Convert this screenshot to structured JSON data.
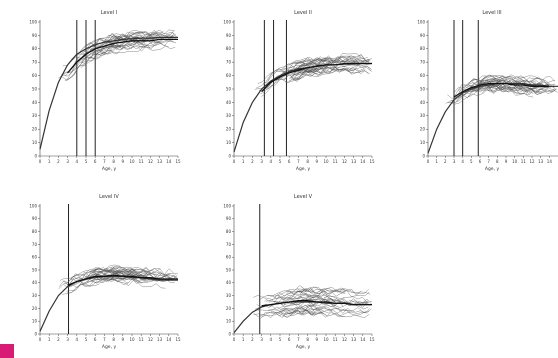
{
  "chart_data": [
    {
      "type": "line",
      "title": "Level I",
      "xlabel": "Age, y",
      "xlim": [
        0,
        15
      ],
      "ylim": [
        0,
        100
      ],
      "x_ticks": [
        "0",
        "1",
        "2",
        "3",
        "4",
        "5",
        "6",
        "7",
        "8",
        "9",
        "10",
        "11",
        "12",
        "13",
        "14",
        "15"
      ],
      "y_ticks": [
        "0",
        "10",
        "20",
        "30",
        "40",
        "50",
        "60",
        "70",
        "80",
        "90",
        "100"
      ],
      "vertical_markers": [
        4,
        5,
        6
      ],
      "series": [
        {
          "values": [
            [
              0,
              5
            ],
            [
              1,
              34
            ],
            [
              2,
              55
            ],
            [
              3,
              68
            ],
            [
              4,
              76
            ],
            [
              5,
              80
            ],
            [
              6,
              83
            ],
            [
              7,
              85
            ],
            [
              8,
              86
            ],
            [
              9,
              87
            ],
            [
              10,
              87.5
            ],
            [
              11,
              88
            ],
            [
              12,
              88
            ],
            [
              13,
              88.5
            ],
            [
              14,
              88.5
            ],
            [
              15,
              88.5
            ]
          ]
        },
        {
          "values": [
            [
              3,
              62
            ],
            [
              4,
              70
            ],
            [
              5,
              76
            ],
            [
              6,
              80
            ],
            [
              7,
              82
            ],
            [
              8,
              84
            ],
            [
              9,
              85
            ],
            [
              10,
              86
            ],
            [
              11,
              86
            ],
            [
              12,
              86
            ],
            [
              13,
              87
            ],
            [
              14,
              87
            ],
            [
              15,
              87
            ]
          ]
        }
      ]
    },
    {
      "type": "line",
      "title": "Level II",
      "xlabel": "Age, y",
      "xlim": [
        0,
        15
      ],
      "ylim": [
        0,
        100
      ],
      "x_ticks": [
        "0",
        "1",
        "2",
        "3",
        "4",
        "5",
        "6",
        "7",
        "8",
        "9",
        "10",
        "11",
        "12",
        "13",
        "14",
        "15"
      ],
      "y_ticks": [
        "0",
        "10",
        "20",
        "30",
        "40",
        "50",
        "60",
        "70",
        "80",
        "90",
        "100"
      ],
      "vertical_markers": [
        3.3,
        4.3,
        5.7
      ],
      "series": [
        {
          "values": [
            [
              0,
              3
            ],
            [
              1,
              25
            ],
            [
              2,
              40
            ],
            [
              3,
              50
            ],
            [
              4,
              56
            ],
            [
              5,
              60
            ],
            [
              6,
              63
            ],
            [
              7,
              65
            ],
            [
              8,
              66
            ],
            [
              9,
              67
            ],
            [
              10,
              68
            ],
            [
              11,
              68
            ],
            [
              12,
              68.5
            ],
            [
              13,
              68.5
            ],
            [
              14,
              69
            ],
            [
              15,
              69
            ]
          ]
        },
        {
          "values": [
            [
              3,
              48
            ],
            [
              4,
              55
            ],
            [
              5,
              59
            ],
            [
              6,
              62
            ],
            [
              7,
              64
            ],
            [
              8,
              66
            ],
            [
              9,
              67
            ],
            [
              10,
              68
            ],
            [
              11,
              68
            ],
            [
              12,
              69
            ],
            [
              13,
              69
            ],
            [
              14,
              69
            ],
            [
              15,
              69
            ]
          ]
        }
      ]
    },
    {
      "type": "line",
      "title": "Level III",
      "xlabel": "Age, y",
      "xlim": [
        0,
        15
      ],
      "ylim": [
        0,
        100
      ],
      "x_ticks": [
        "0",
        "1",
        "2",
        "3",
        "4",
        "5",
        "6",
        "7",
        "8",
        "9",
        "10",
        "11",
        "12",
        "13",
        "14"
      ],
      "y_ticks": [
        "0",
        "10",
        "20",
        "30",
        "40",
        "50",
        "60",
        "70",
        "80",
        "90",
        "100"
      ],
      "vertical_markers": [
        3,
        4,
        5.8
      ],
      "series": [
        {
          "values": [
            [
              0,
              2
            ],
            [
              1,
              20
            ],
            [
              2,
              33
            ],
            [
              3,
              42
            ],
            [
              4,
              47
            ],
            [
              5,
              50
            ],
            [
              6,
              52
            ],
            [
              7,
              53
            ],
            [
              8,
              54
            ],
            [
              9,
              54
            ],
            [
              10,
              54
            ],
            [
              11,
              54
            ],
            [
              12,
              53
            ],
            [
              13,
              53
            ],
            [
              14,
              52
            ],
            [
              15,
              52
            ]
          ]
        },
        {
          "values": [
            [
              3,
              44
            ],
            [
              4,
              48
            ],
            [
              5,
              51
            ],
            [
              6,
              53
            ],
            [
              7,
              54
            ],
            [
              8,
              54
            ],
            [
              9,
              54
            ],
            [
              10,
              53
            ],
            [
              11,
              53
            ],
            [
              12,
              52
            ],
            [
              13,
              52
            ],
            [
              14,
              52
            ]
          ]
        }
      ]
    },
    {
      "type": "line",
      "title": "Level IV",
      "xlabel": "Age, y",
      "xlim": [
        0,
        15
      ],
      "ylim": [
        0,
        100
      ],
      "x_ticks": [
        "0",
        "1",
        "2",
        "3",
        "4",
        "5",
        "6",
        "7",
        "8",
        "9",
        "10",
        "11",
        "12",
        "13",
        "14",
        "15"
      ],
      "y_ticks": [
        "0",
        "10",
        "20",
        "30",
        "40",
        "50",
        "60",
        "70",
        "80",
        "90",
        "100"
      ],
      "vertical_markers": [
        3.1
      ],
      "series": [
        {
          "values": [
            [
              0,
              2
            ],
            [
              1,
              18
            ],
            [
              2,
              30
            ],
            [
              3,
              37
            ],
            [
              4,
              41
            ],
            [
              5,
              43
            ],
            [
              6,
              44
            ],
            [
              7,
              45
            ],
            [
              8,
              45
            ],
            [
              9,
              45
            ],
            [
              10,
              44
            ],
            [
              11,
              44
            ],
            [
              12,
              43
            ],
            [
              13,
              42
            ],
            [
              14,
              42
            ],
            [
              15,
              42
            ]
          ]
        },
        {
          "values": [
            [
              3,
              38
            ],
            [
              4,
              41
            ],
            [
              5,
              43
            ],
            [
              6,
              45
            ],
            [
              7,
              45
            ],
            [
              8,
              46
            ],
            [
              9,
              45
            ],
            [
              10,
              45
            ],
            [
              11,
              44
            ],
            [
              12,
              44
            ],
            [
              13,
              43
            ],
            [
              14,
              43
            ],
            [
              15,
              43
            ]
          ]
        }
      ]
    },
    {
      "type": "line",
      "title": "Level V",
      "xlabel": "Age, y",
      "xlim": [
        0,
        15
      ],
      "ylim": [
        0,
        100
      ],
      "x_ticks": [
        "0",
        "1",
        "2",
        "3",
        "4",
        "5",
        "6",
        "7",
        "8",
        "9",
        "10",
        "11",
        "12",
        "13",
        "14",
        "15"
      ],
      "y_ticks": [
        "0",
        "10",
        "20",
        "30",
        "40",
        "50",
        "60",
        "70",
        "80",
        "90",
        "100"
      ],
      "vertical_markers": [
        2.8
      ],
      "series": [
        {
          "values": [
            [
              0,
              1
            ],
            [
              1,
              10
            ],
            [
              2,
              17
            ],
            [
              3,
              21
            ],
            [
              4,
              23
            ],
            [
              5,
              24
            ],
            [
              6,
              25
            ],
            [
              7,
              25
            ],
            [
              8,
              25
            ],
            [
              9,
              25
            ],
            [
              10,
              24
            ],
            [
              11,
              24
            ],
            [
              12,
              24
            ],
            [
              13,
              23
            ],
            [
              14,
              23
            ],
            [
              15,
              23
            ]
          ]
        },
        {
          "values": [
            [
              3,
              22
            ],
            [
              4,
              23
            ],
            [
              5,
              24
            ],
            [
              6,
              25
            ],
            [
              7,
              26
            ],
            [
              8,
              26
            ],
            [
              9,
              25
            ],
            [
              10,
              25
            ],
            [
              11,
              24
            ],
            [
              12,
              24
            ],
            [
              13,
              23
            ],
            [
              14,
              23
            ],
            [
              15,
              23
            ]
          ]
        }
      ]
    }
  ]
}
